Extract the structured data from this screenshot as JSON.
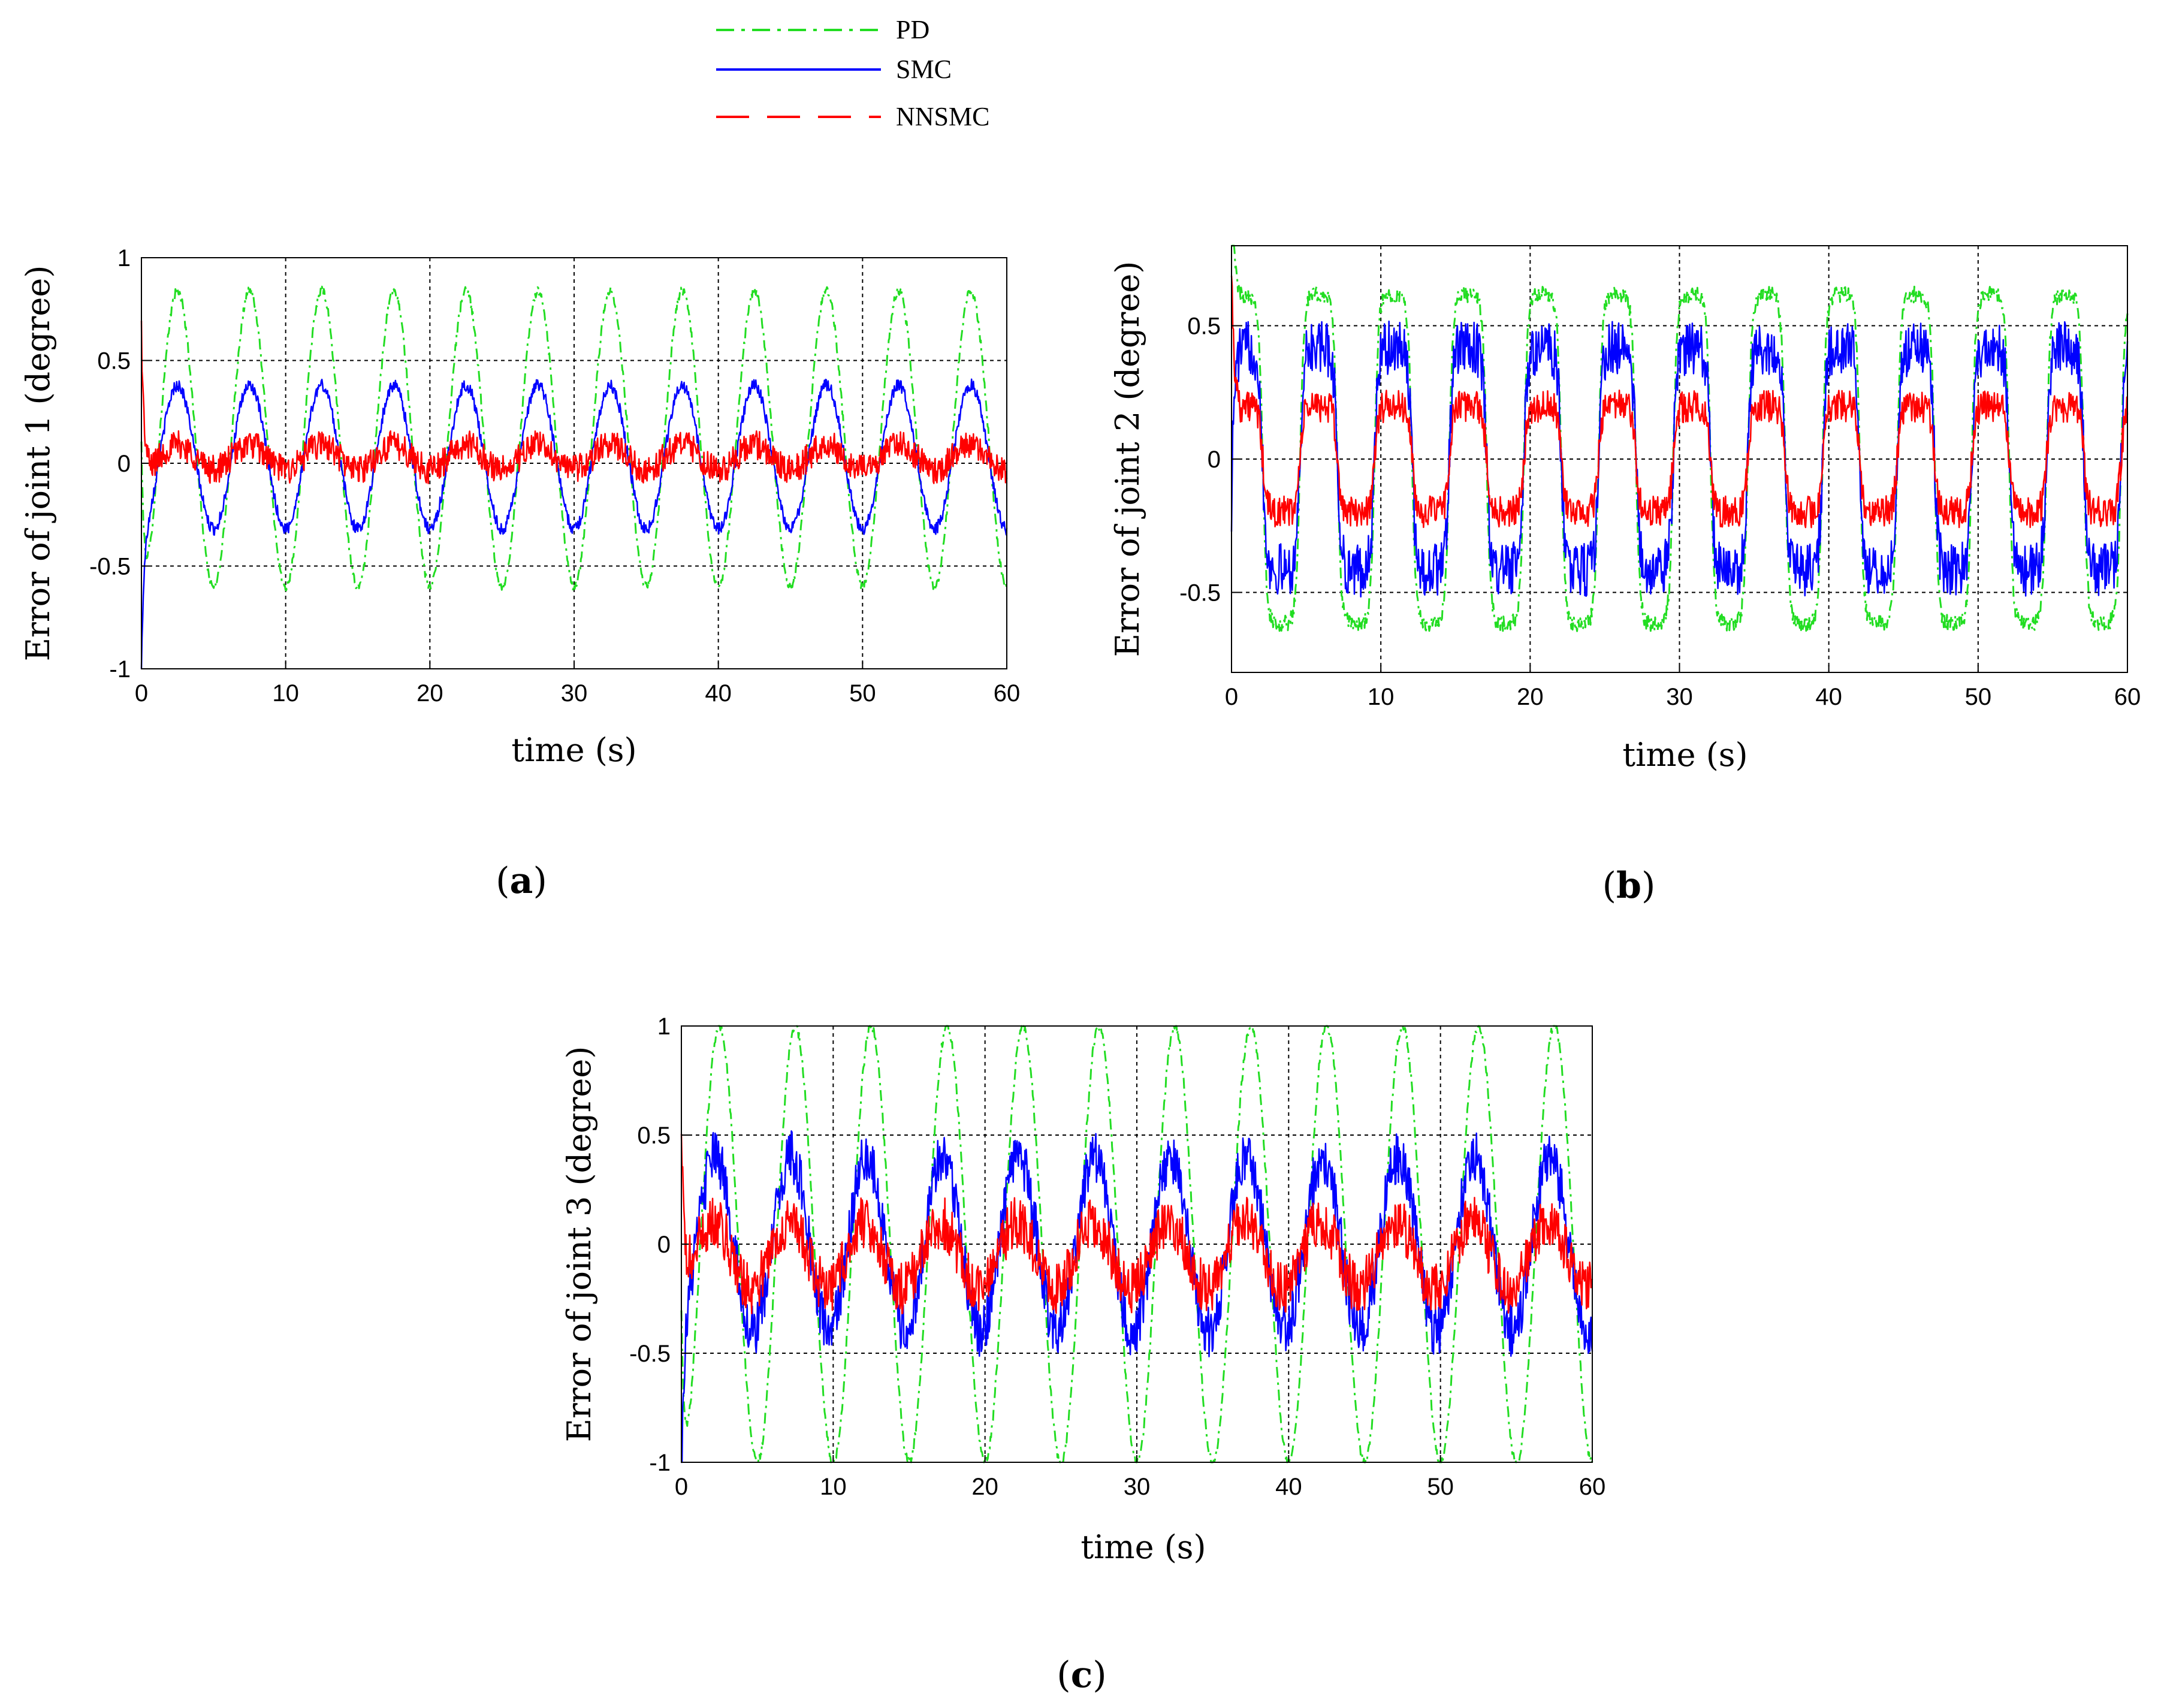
{
  "legend": [
    {
      "label": "PD",
      "color": "#22dd22",
      "style": "dash-dot"
    },
    {
      "label": "SMC",
      "color": "#0000ff",
      "style": "solid"
    },
    {
      "label": "NNSMC",
      "color": "#ff0000",
      "style": "dashed"
    }
  ],
  "chart_data": [
    {
      "type": "line",
      "panel": "a",
      "ylabel": "Error of joint 1 (degree)",
      "xlabel": "time (s)",
      "xlim": [
        0,
        60
      ],
      "ylim": [
        -1,
        1
      ],
      "xticks": [
        0,
        10,
        20,
        30,
        40,
        50,
        60
      ],
      "yticks": [
        -1,
        -0.5,
        0,
        0.5,
        1
      ],
      "ytick_labels": [
        "-1",
        "-0.5",
        "0",
        "0.5",
        "1"
      ],
      "grid": true,
      "series": [
        {
          "name": "PD",
          "period_s": 5,
          "amplitude": 0.72,
          "offset": 0.12,
          "phase_deg": -90,
          "noise": 0.02
        },
        {
          "name": "SMC",
          "period_s": 5,
          "amplitude": 0.35,
          "offset": 0.03,
          "phase_deg": -90,
          "noise": 0.03
        },
        {
          "name": "NNSMC",
          "period_s": 5,
          "amplitude": 0.06,
          "offset": 0.03,
          "phase_deg": -90,
          "noise": 0.07
        }
      ]
    },
    {
      "type": "line",
      "panel": "b",
      "ylabel": "Error of joint 2 (degree)",
      "xlabel": "time (s)",
      "xlim": [
        0,
        60
      ],
      "ylim": [
        -0.8,
        0.8
      ],
      "xticks": [
        0,
        10,
        20,
        30,
        40,
        50,
        60
      ],
      "yticks": [
        -0.5,
        0,
        0.5
      ],
      "ytick_labels": [
        "-0.5",
        "0",
        "0.5"
      ],
      "grid": true,
      "series": [
        {
          "name": "PD",
          "period_s": 5,
          "amplitude": 0.62,
          "offset": 0,
          "phase_deg": 30,
          "noise": 0.03,
          "shape": "square"
        },
        {
          "name": "SMC",
          "period_s": 5,
          "amplitude": 0.42,
          "offset": 0,
          "phase_deg": 30,
          "noise": 0.1,
          "shape": "square"
        },
        {
          "name": "NNSMC",
          "period_s": 5,
          "amplitude": 0.2,
          "offset": 0,
          "phase_deg": 30,
          "noise": 0.06,
          "shape": "square"
        }
      ]
    },
    {
      "type": "line",
      "panel": "c",
      "ylabel": "Error of joint 3 (degree)",
      "xlabel": "time (s)",
      "xlim": [
        0,
        60
      ],
      "ylim": [
        -1,
        1
      ],
      "xticks": [
        0,
        10,
        20,
        30,
        40,
        50,
        60
      ],
      "yticks": [
        -1,
        -0.5,
        0,
        0.5,
        1
      ],
      "ytick_labels": [
        "-1",
        "-0.5",
        "0",
        "0.5",
        "1"
      ],
      "grid": true,
      "series": [
        {
          "name": "PD",
          "period_s": 5,
          "amplitude": 1.0,
          "offset": 0,
          "phase_deg": -90,
          "noise": 0.02
        },
        {
          "name": "SMC",
          "period_s": 5,
          "amplitude": 0.4,
          "offset": 0,
          "phase_deg": -70,
          "noise": 0.12
        },
        {
          "name": "NNSMC",
          "period_s": 5,
          "amplitude": 0.15,
          "offset": -0.05,
          "phase_deg": -60,
          "noise": 0.12
        }
      ]
    }
  ],
  "panel_labels": {
    "a": "(a)",
    "b": "(b)",
    "c": "(c)"
  },
  "panel_letters": {
    "a": "a",
    "b": "b",
    "c": "c"
  }
}
